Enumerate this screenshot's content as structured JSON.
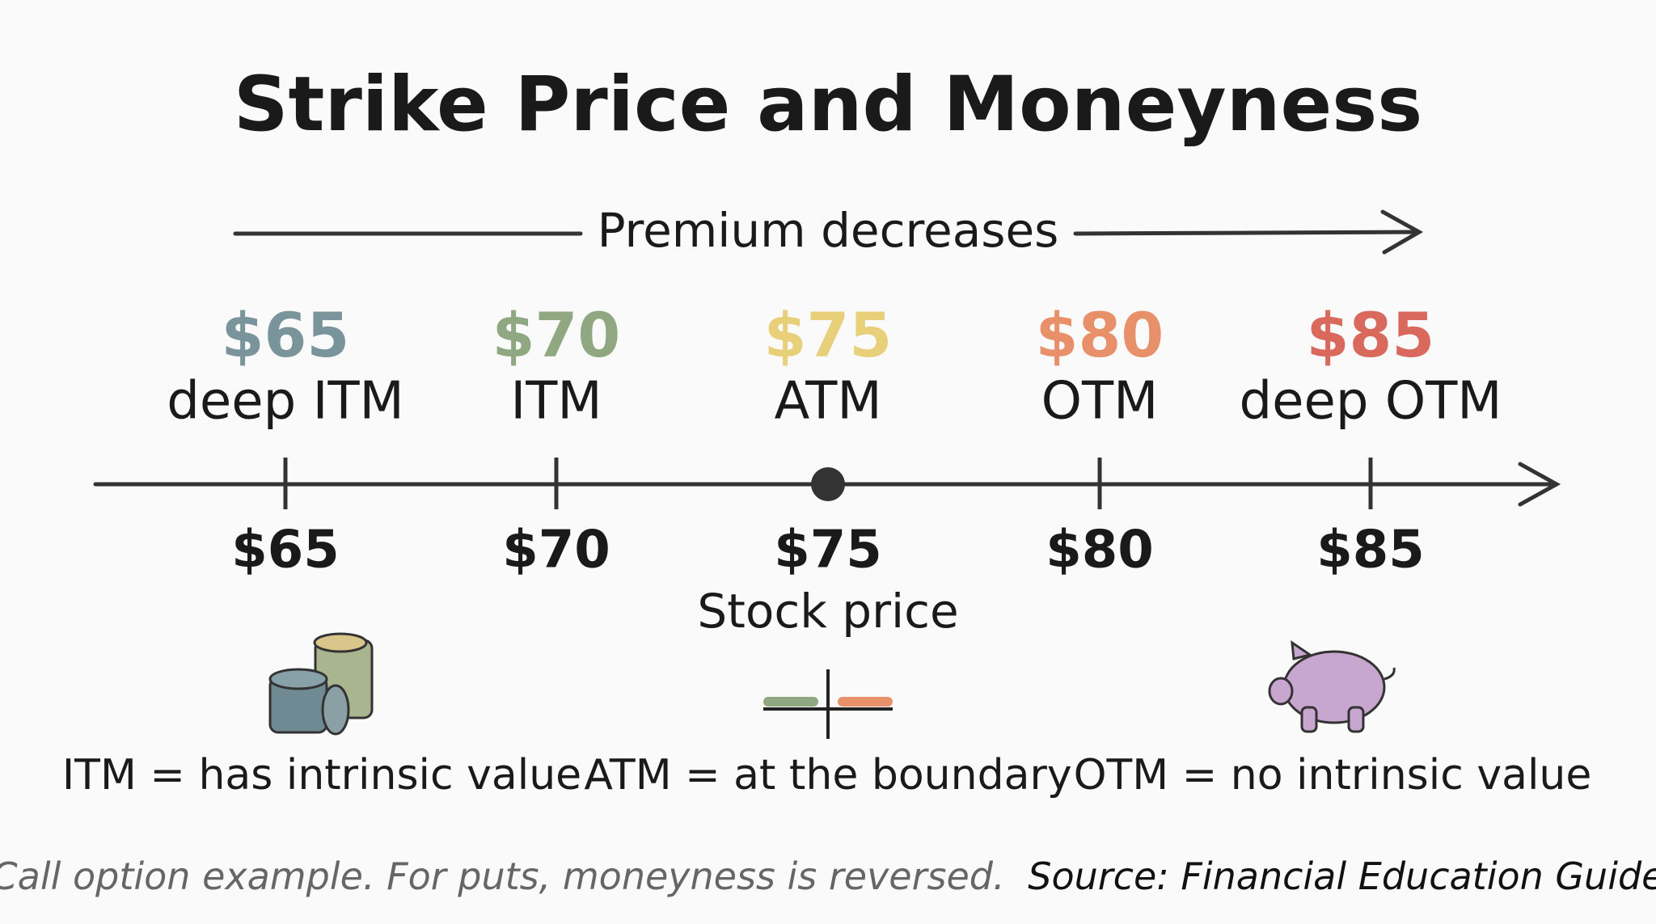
{
  "header": {
    "title": "Strike Price and Moneyness",
    "premium_label": "Premium decreases"
  },
  "strikes": [
    {
      "price": "$65",
      "label": "deep ITM",
      "color": "#7a949c"
    },
    {
      "price": "$70",
      "label": "ITM",
      "color": "#8fa882"
    },
    {
      "price": "$75",
      "label": "ATM",
      "color": "#e8cf7a"
    },
    {
      "price": "$80",
      "label": "OTM",
      "color": "#e8906a"
    },
    {
      "price": "$85",
      "label": "deep OTM",
      "color": "#d9695c"
    }
  ],
  "axis": {
    "ticks": [
      "$65",
      "$70",
      "$75",
      "$80",
      "$85"
    ],
    "label": "Stock price"
  },
  "legend": [
    "ITM = has intrinsic value",
    "ATM = at the boundary",
    "OTM = no intrinsic value"
  ],
  "footnote": {
    "note": "Call option example. For puts, moneyness is reversed.",
    "source": "Source: Financial Education Guide"
  }
}
